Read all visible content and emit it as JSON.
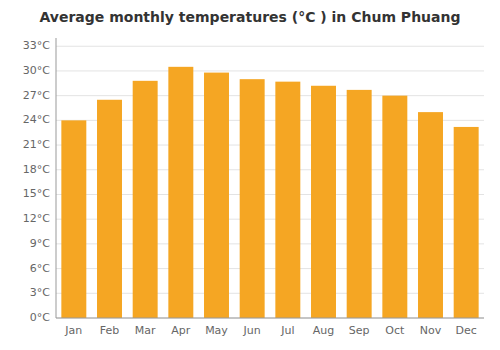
{
  "chart_data": {
    "type": "bar",
    "title": "Average monthly temperatures (°C ) in Chum Phuang",
    "categories": [
      "Jan",
      "Feb",
      "Mar",
      "Apr",
      "May",
      "Jun",
      "Jul",
      "Aug",
      "Sep",
      "Oct",
      "Nov",
      "Dec"
    ],
    "values": [
      24.0,
      26.5,
      28.8,
      30.5,
      29.8,
      29.0,
      28.7,
      28.2,
      27.7,
      27.0,
      25.0,
      23.2
    ],
    "color": "#F5A623",
    "ylim": [
      0,
      34
    ],
    "yticks": [
      {
        "value": 0,
        "label": "0°C"
      },
      {
        "value": 3,
        "label": "3°C"
      },
      {
        "value": 6,
        "label": "6°C"
      },
      {
        "value": 9,
        "label": "9°C"
      },
      {
        "value": 12,
        "label": "12°C"
      },
      {
        "value": 15,
        "label": "15°C"
      },
      {
        "value": 18,
        "label": "18°C"
      },
      {
        "value": 21,
        "label": "21°C"
      },
      {
        "value": 24,
        "label": "24°C"
      },
      {
        "value": 27,
        "label": "27°C"
      },
      {
        "value": 30,
        "label": "30°C"
      },
      {
        "value": 33,
        "label": "33°C"
      }
    ],
    "grid": true
  }
}
